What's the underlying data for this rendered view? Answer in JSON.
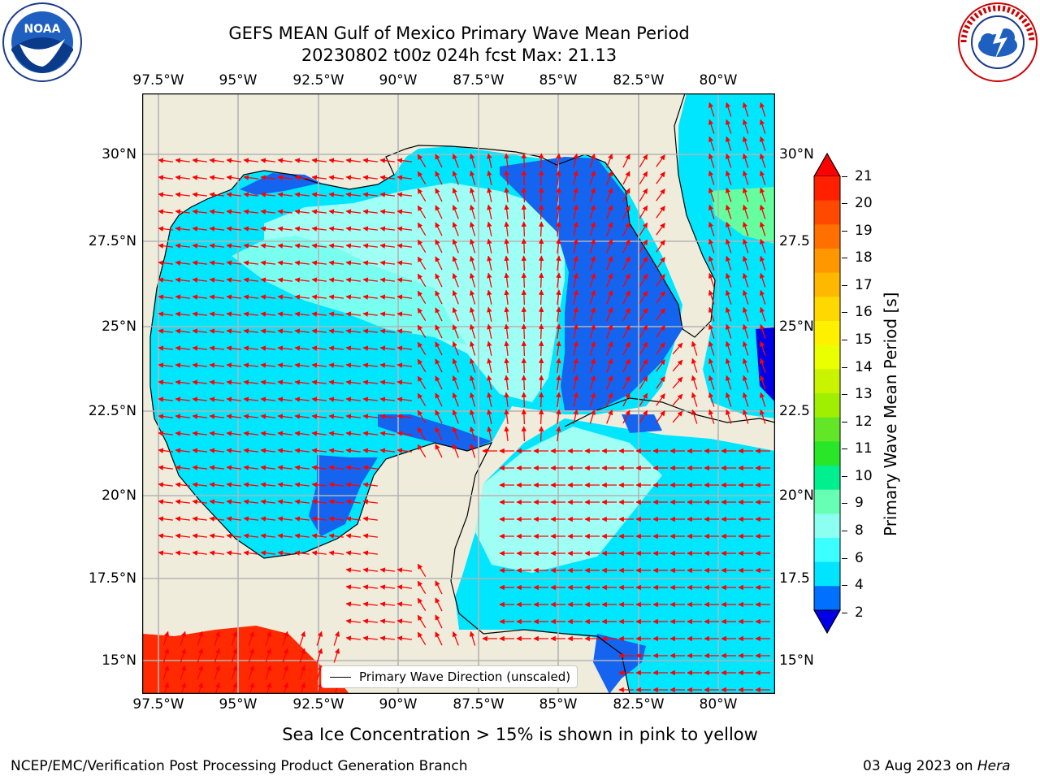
{
  "title": {
    "line1": "GEFS MEAN Gulf of Mexico Primary Wave Mean Period",
    "line2": "20230802 t00z 024h fcst   Max: 21.13"
  },
  "logos": {
    "left": "noaa-logo",
    "right": "national-weather-service-logo",
    "right_text": "NATIONAL WEATHER SERVICE"
  },
  "axes": {
    "lon_labels": [
      "97.5°W",
      "95°W",
      "92.5°W",
      "90°W",
      "87.5°W",
      "85°W",
      "82.5°W",
      "80°W"
    ],
    "lat_labels": [
      "30°N",
      "27.5°N",
      "25°N",
      "22.5°N",
      "20°N",
      "17.5°N",
      "15°N"
    ],
    "right_lat_labels": [
      "30°N",
      "27.5",
      "25°N",
      "22.5",
      "20°N",
      "17.5",
      "15°N"
    ]
  },
  "legend": {
    "label": "Primary Wave Direction (unscaled)"
  },
  "colorbar": {
    "label": "Primary Wave Mean Period [s]",
    "ticks": [
      "21",
      "20",
      "19",
      "18",
      "17",
      "16",
      "15",
      "14",
      "13",
      "12",
      "11",
      "10",
      "9",
      "8",
      "6",
      "4",
      "2"
    ],
    "colors_top_to_bottom": [
      "#ff2000",
      "#ff4800",
      "#ff7000",
      "#ff9800",
      "#ffb800",
      "#ffd800",
      "#fff000",
      "#eaff00",
      "#c8f400",
      "#a0ee00",
      "#64e628",
      "#28e628",
      "#00f090",
      "#66ffb4",
      "#8cfff0",
      "#3cffff",
      "#00e4ff",
      "#0070ff"
    ],
    "under_color": "#0000e6",
    "over_color": "#ff0000"
  },
  "map": {
    "land_color": "#efecdc",
    "ocean_colors": {
      "dark_blue": "#1464f0",
      "cyan": "#00e6ff",
      "light_cyan": "#78fff0",
      "pale": "#a0fff5",
      "green": "#66ffa0",
      "red": "#ff2a00",
      "deep": "#0000e6"
    },
    "arrow_color": "#ff0000",
    "grid_color": "#b4b4b4"
  },
  "note": "Sea Ice Concentration > 15% is shown in pink to yellow",
  "footer": {
    "left": "NCEP/EMC/Verification Post Processing Product Generation Branch",
    "right_date": "03 Aug 2023 on ",
    "right_host": "Hera"
  }
}
